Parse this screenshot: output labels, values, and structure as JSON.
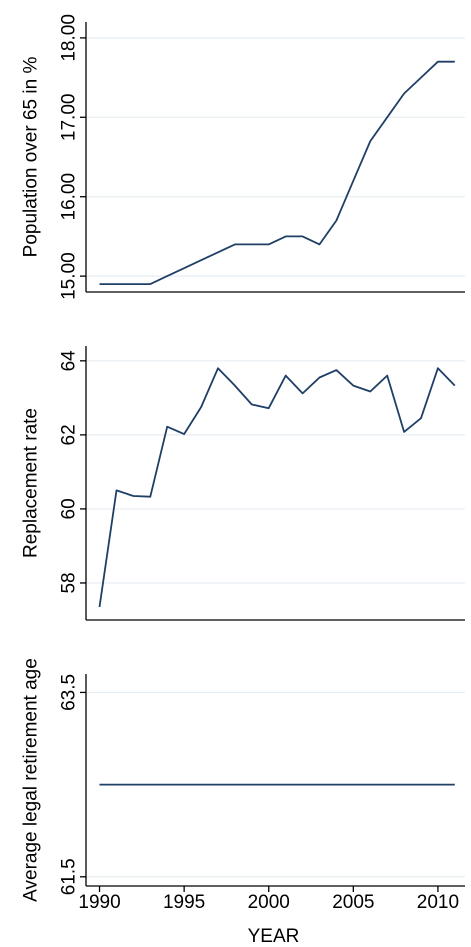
{
  "chart_data": [
    {
      "type": "line",
      "ylabel": "Population over 65 in %",
      "ylim": [
        14.8,
        18.2
      ],
      "yticks": [
        "15.00",
        "16.00",
        "17.00",
        "18.00"
      ],
      "grid": true,
      "x": [
        1990,
        1991,
        1992,
        1993,
        1994,
        1995,
        1996,
        1997,
        1998,
        1999,
        2000,
        2001,
        2002,
        2003,
        2004,
        2005,
        2006,
        2007,
        2008,
        2009,
        2010,
        2011
      ],
      "series": [
        {
          "values": [
            14.9,
            14.9,
            14.9,
            14.9,
            15.0,
            15.1,
            15.2,
            15.3,
            15.4,
            15.4,
            15.4,
            15.5,
            15.5,
            15.4,
            15.7,
            16.2,
            16.7,
            17.0,
            17.3,
            17.5,
            17.7,
            17.7
          ]
        }
      ]
    },
    {
      "type": "line",
      "ylabel": "Replacement rate",
      "ylim": [
        57,
        64.4
      ],
      "yticks": [
        "58",
        "60",
        "62",
        "64"
      ],
      "grid": true,
      "x": [
        1990,
        1991,
        1992,
        1993,
        1994,
        1995,
        1996,
        1997,
        1998,
        1999,
        2000,
        2001,
        2002,
        2003,
        2004,
        2005,
        2006,
        2007,
        2008,
        2009,
        2010,
        2011
      ],
      "series": [
        {
          "values": [
            57.35,
            60.5,
            60.35,
            60.33,
            62.22,
            62.02,
            62.75,
            63.8,
            63.33,
            62.82,
            62.72,
            63.6,
            63.12,
            63.55,
            63.75,
            63.33,
            63.17,
            63.6,
            62.08,
            62.45,
            63.8,
            63.33
          ]
        }
      ]
    },
    {
      "type": "line",
      "ylabel": "Average legal retirement age",
      "ylim": [
        61.4,
        63.7
      ],
      "yticks": [
        "61.5",
        "63.5"
      ],
      "grid": true,
      "x": [
        1990,
        2011
      ],
      "series": [
        {
          "values": [
            62.5,
            62.5
          ]
        }
      ]
    }
  ],
  "xaxis": {
    "label": "YEAR",
    "ticks": [
      1990,
      1995,
      2000,
      2005,
      2010
    ],
    "xlim": [
      1989.2,
      2011.6
    ]
  },
  "colors": {
    "line": "#1f3f66",
    "grid": "#e6eef3",
    "axis": "#000000"
  }
}
